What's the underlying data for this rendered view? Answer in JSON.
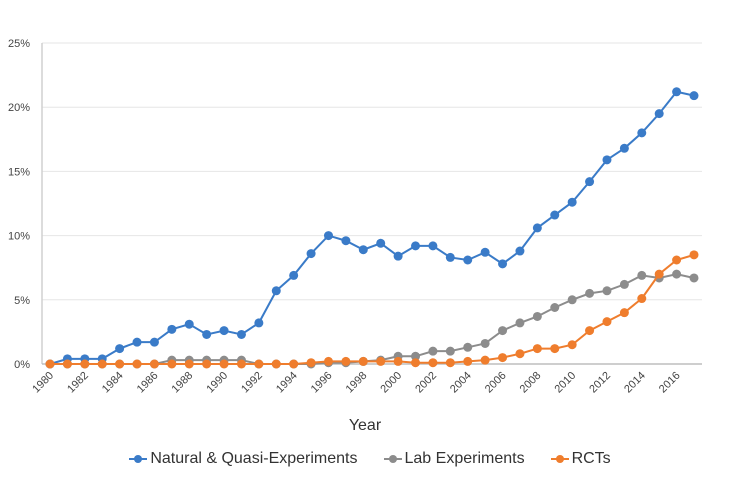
{
  "chart_data": {
    "type": "line",
    "title": "",
    "xlabel": "Year",
    "ylabel": "",
    "ylim": [
      0,
      25
    ],
    "yticks": [
      "0%",
      "5%",
      "10%",
      "15%",
      "20%",
      "25%"
    ],
    "ytick_values": [
      0,
      5,
      10,
      15,
      20,
      25
    ],
    "xticks": [
      "1980",
      "1982",
      "1984",
      "1986",
      "1988",
      "1990",
      "1992",
      "1994",
      "1996",
      "1998",
      "2000",
      "2002",
      "2004",
      "2006",
      "2008",
      "2010",
      "2012",
      "2014",
      "2016"
    ],
    "x": [
      1980,
      1981,
      1982,
      1983,
      1984,
      1985,
      1986,
      1987,
      1988,
      1989,
      1990,
      1991,
      1992,
      1993,
      1994,
      1995,
      1996,
      1997,
      1998,
      1999,
      2000,
      2001,
      2002,
      2003,
      2004,
      2005,
      2006,
      2007,
      2008,
      2009,
      2010,
      2011,
      2012,
      2013,
      2014,
      2015,
      2016,
      2017
    ],
    "grid": "horizontal",
    "legend_position": "bottom",
    "series": [
      {
        "name": "Natural & Quasi-Experiments",
        "color": "#3a7bc8",
        "values": [
          0,
          0.4,
          0.4,
          0.4,
          1.2,
          1.7,
          1.7,
          2.7,
          3.1,
          2.3,
          2.6,
          2.3,
          3.2,
          5.7,
          6.9,
          8.6,
          10.0,
          9.6,
          8.9,
          9.4,
          8.4,
          9.2,
          9.2,
          8.3,
          8.1,
          8.7,
          7.8,
          8.8,
          10.6,
          11.6,
          12.6,
          14.2,
          15.9,
          16.8,
          18.0,
          19.5,
          21.2,
          20.9
        ]
      },
      {
        "name": "Lab Experiments",
        "color": "#8c8c8c",
        "values": [
          0,
          0,
          0,
          0,
          0,
          0,
          0,
          0.3,
          0.3,
          0.3,
          0.3,
          0.3,
          0,
          0,
          0,
          0,
          0.1,
          0.1,
          0.2,
          0.3,
          0.6,
          0.6,
          1.0,
          1.0,
          1.3,
          1.6,
          2.6,
          3.2,
          3.7,
          4.4,
          5.0,
          5.5,
          5.7,
          6.2,
          6.9,
          6.7,
          7.0,
          6.7
        ]
      },
      {
        "name": "RCTs",
        "color": "#ef7d2d",
        "values": [
          0,
          0,
          0,
          0,
          0,
          0,
          0,
          0,
          0,
          0,
          0,
          0,
          0,
          0,
          0,
          0.1,
          0.2,
          0.2,
          0.2,
          0.2,
          0.2,
          0.1,
          0.1,
          0.1,
          0.2,
          0.3,
          0.5,
          0.8,
          1.2,
          1.2,
          1.5,
          2.6,
          3.3,
          4.0,
          5.1,
          7.0,
          8.1,
          8.5
        ]
      }
    ]
  }
}
